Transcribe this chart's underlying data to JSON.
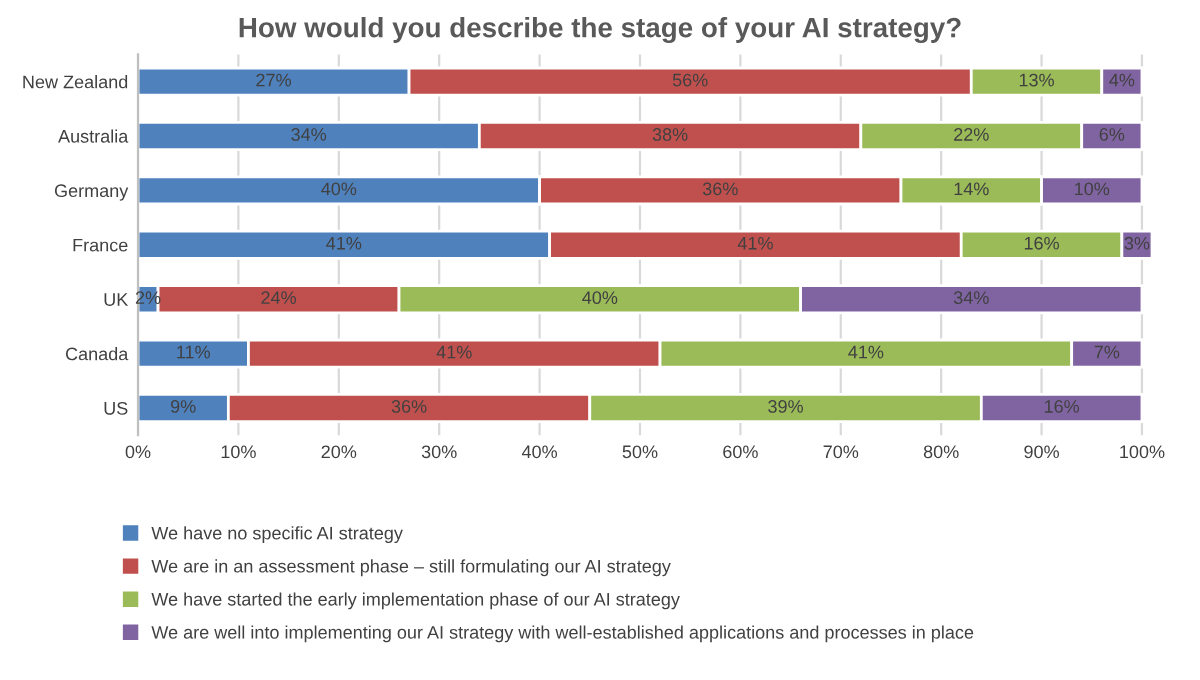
{
  "chart_data": {
    "type": "bar",
    "orientation": "horizontal",
    "stacked": true,
    "title": "How would you describe the stage of your AI strategy?",
    "categories": [
      "New Zealand",
      "Australia",
      "Germany",
      "France",
      "UK",
      "Canada",
      "US"
    ],
    "series": [
      {
        "name": "We have no specific AI strategy",
        "color": "#4f81bd",
        "values": [
          27,
          34,
          40,
          41,
          2,
          11,
          9
        ],
        "value_labels": [
          "27%",
          "34%",
          "40%",
          "41%",
          "2%",
          "11%",
          "9%"
        ]
      },
      {
        "name": "We are in an assessment phase – still formulating our AI strategy",
        "color": "#c0504d",
        "values": [
          56,
          38,
          36,
          41,
          24,
          41,
          36
        ],
        "value_labels": [
          "56%",
          "38%",
          "36%",
          "41%",
          "24%",
          "41%",
          "36%"
        ]
      },
      {
        "name": "We have started the early implementation phase of our AI strategy",
        "color": "#9bbb59",
        "values": [
          13,
          22,
          14,
          16,
          40,
          41,
          39
        ],
        "value_labels": [
          "13%",
          "22%",
          "14%",
          "16%",
          "40%",
          "41%",
          "39%"
        ]
      },
      {
        "name": "We are well into implementing our AI strategy with well-established applications and processes in place",
        "color": "#8064a2",
        "values": [
          4,
          6,
          10,
          3,
          34,
          7,
          16
        ],
        "value_labels": [
          "4%",
          "6%",
          "10%",
          "3%",
          "34%",
          "7%",
          "16%"
        ]
      }
    ],
    "xlim": [
      0,
      101
    ],
    "xticks": [
      {
        "value": 0,
        "label": "0%"
      },
      {
        "value": 10,
        "label": "10%"
      },
      {
        "value": 20,
        "label": "20%"
      },
      {
        "value": 30,
        "label": "30%"
      },
      {
        "value": 40,
        "label": "40%"
      },
      {
        "value": 50,
        "label": "50%"
      },
      {
        "value": 60,
        "label": "60%"
      },
      {
        "value": 70,
        "label": "70%"
      },
      {
        "value": 80,
        "label": "80%"
      },
      {
        "value": 90,
        "label": "90%"
      },
      {
        "value": 100,
        "label": "100%"
      }
    ],
    "grid": "x",
    "legend": "bottom"
  }
}
